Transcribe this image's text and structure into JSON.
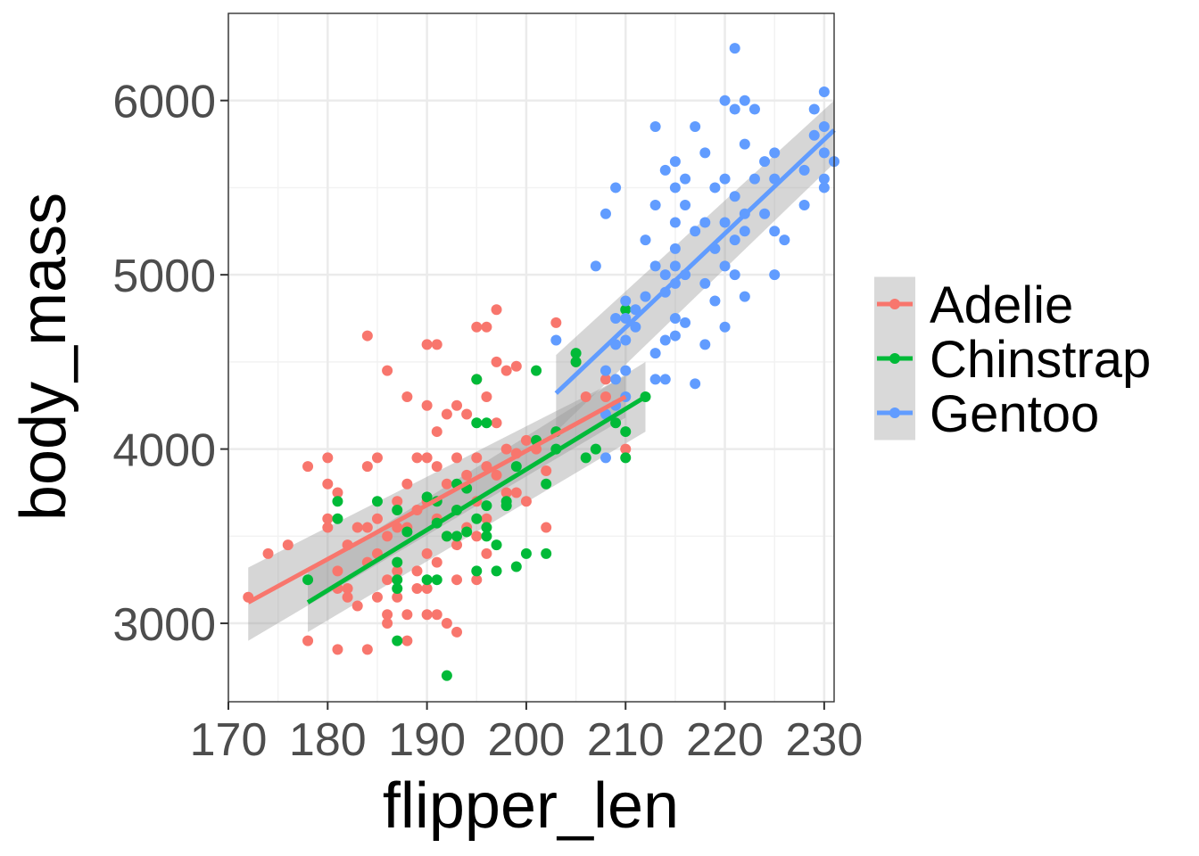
{
  "chart_data": {
    "type": "scatter",
    "title": "",
    "xlabel": "flipper_len",
    "ylabel": "body_mass",
    "xlim": [
      170,
      231
    ],
    "ylim": [
      2550,
      6500
    ],
    "x_ticks": [
      170,
      180,
      190,
      200,
      210,
      220,
      230
    ],
    "x_tick_labels": [
      "170",
      "180",
      "190",
      "200",
      "210",
      "220",
      "230"
    ],
    "y_ticks": [
      3000,
      4000,
      5000,
      6000
    ],
    "y_tick_labels": [
      "3000",
      "4000",
      "5000",
      "6000"
    ],
    "grid": true,
    "legend_position": "right",
    "series": [
      {
        "name": "Adelie",
        "color": "#F8766D",
        "fit": {
          "x": [
            172,
            210
          ],
          "y": [
            3120,
            4300
          ],
          "ci_start": [
            2900,
            3320
          ],
          "ci_end": [
            4180,
            4420
          ]
        },
        "points": [
          [
            172,
            3150
          ],
          [
            174,
            3400
          ],
          [
            176,
            3450
          ],
          [
            178,
            3900
          ],
          [
            178,
            2900
          ],
          [
            180,
            3950
          ],
          [
            180,
            3800
          ],
          [
            180,
            3600
          ],
          [
            180,
            3550
          ],
          [
            181,
            3300
          ],
          [
            181,
            2850
          ],
          [
            181,
            3750
          ],
          [
            181,
            3200
          ],
          [
            182,
            3150
          ],
          [
            182,
            3450
          ],
          [
            182,
            3200
          ],
          [
            183,
            3550
          ],
          [
            183,
            3100
          ],
          [
            184,
            4650
          ],
          [
            184,
            3900
          ],
          [
            184,
            3350
          ],
          [
            184,
            2850
          ],
          [
            184,
            3550
          ],
          [
            185,
            3950
          ],
          [
            185,
            3600
          ],
          [
            185,
            3400
          ],
          [
            185,
            3150
          ],
          [
            186,
            4450
          ],
          [
            186,
            3500
          ],
          [
            186,
            3050
          ],
          [
            186,
            3250
          ],
          [
            186,
            3000
          ],
          [
            187,
            3700
          ],
          [
            187,
            3550
          ],
          [
            187,
            3300
          ],
          [
            187,
            3150
          ],
          [
            188,
            4300
          ],
          [
            188,
            3800
          ],
          [
            188,
            3550
          ],
          [
            188,
            3050
          ],
          [
            188,
            2900
          ],
          [
            189,
            3950
          ],
          [
            189,
            3650
          ],
          [
            189,
            3300
          ],
          [
            189,
            3200
          ],
          [
            190,
            4600
          ],
          [
            190,
            4250
          ],
          [
            190,
            3950
          ],
          [
            190,
            3700
          ],
          [
            190,
            3400
          ],
          [
            190,
            3050
          ],
          [
            190,
            3200
          ],
          [
            191,
            4600
          ],
          [
            191,
            4100
          ],
          [
            191,
            3900
          ],
          [
            191,
            3600
          ],
          [
            191,
            3350
          ],
          [
            191,
            3050
          ],
          [
            192,
            4200
          ],
          [
            192,
            3800
          ],
          [
            192,
            3500
          ],
          [
            192,
            3000
          ],
          [
            193,
            4250
          ],
          [
            193,
            3950
          ],
          [
            193,
            3650
          ],
          [
            193,
            3450
          ],
          [
            193,
            3250
          ],
          [
            193,
            2950
          ],
          [
            194,
            4200
          ],
          [
            194,
            3850
          ],
          [
            194,
            3550
          ],
          [
            195,
            4700
          ],
          [
            195,
            4400
          ],
          [
            195,
            3950
          ],
          [
            195,
            3700
          ],
          [
            195,
            3500
          ],
          [
            195,
            3250
          ],
          [
            196,
            4700
          ],
          [
            196,
            4300
          ],
          [
            196,
            3900
          ],
          [
            196,
            3600
          ],
          [
            196,
            3400
          ],
          [
            197,
            4800
          ],
          [
            197,
            4500
          ],
          [
            197,
            4150
          ],
          [
            197,
            3850
          ],
          [
            198,
            4450
          ],
          [
            198,
            4000
          ],
          [
            198,
            3750
          ],
          [
            199,
            4475
          ],
          [
            199,
            3975
          ],
          [
            199,
            3750
          ],
          [
            200,
            4050
          ],
          [
            200,
            3700
          ],
          [
            201,
            4000
          ],
          [
            202,
            3550
          ],
          [
            202,
            3875
          ],
          [
            203,
            4725
          ],
          [
            205,
            4500
          ],
          [
            206,
            4300
          ],
          [
            208,
            4300
          ],
          [
            210,
            4000
          ],
          [
            208,
            4400
          ]
        ]
      },
      {
        "name": "Chinstrap",
        "color": "#00BA38",
        "fit": {
          "x": [
            178,
            212
          ],
          "y": [
            3120,
            4300
          ],
          "ci_start": [
            2950,
            3290
          ],
          "ci_end": [
            4100,
            4500
          ]
        },
        "points": [
          [
            178,
            3250
          ],
          [
            181,
            3700
          ],
          [
            181,
            3600
          ],
          [
            185,
            3700
          ],
          [
            187,
            3650
          ],
          [
            187,
            3350
          ],
          [
            187,
            3250
          ],
          [
            187,
            3200
          ],
          [
            187,
            2900
          ],
          [
            188,
            3525
          ],
          [
            190,
            3725
          ],
          [
            190,
            3250
          ],
          [
            191,
            3700
          ],
          [
            191,
            3575
          ],
          [
            191,
            3250
          ],
          [
            192,
            3500
          ],
          [
            192,
            2700
          ],
          [
            193,
            3800
          ],
          [
            193,
            3650
          ],
          [
            193,
            3500
          ],
          [
            194,
            3775
          ],
          [
            194,
            3525
          ],
          [
            195,
            4400
          ],
          [
            195,
            4150
          ],
          [
            195,
            3600
          ],
          [
            195,
            3300
          ],
          [
            196,
            4150
          ],
          [
            196,
            3675
          ],
          [
            196,
            3550
          ],
          [
            196,
            3500
          ],
          [
            197,
            3450
          ],
          [
            197,
            3300
          ],
          [
            198,
            3700
          ],
          [
            198,
            3675
          ],
          [
            199,
            3900
          ],
          [
            199,
            3325
          ],
          [
            200,
            3400
          ],
          [
            201,
            4450
          ],
          [
            201,
            4050
          ],
          [
            202,
            3800
          ],
          [
            202,
            3400
          ],
          [
            203,
            4100
          ],
          [
            203,
            4000
          ],
          [
            205,
            4550
          ],
          [
            205,
            4500
          ],
          [
            206,
            3950
          ],
          [
            207,
            4000
          ],
          [
            209,
            4150
          ],
          [
            210,
            4800
          ],
          [
            210,
            4100
          ],
          [
            210,
            3950
          ],
          [
            212,
            4300
          ]
        ]
      },
      {
        "name": "Gentoo",
        "color": "#619CFF",
        "fit": {
          "x": [
            203,
            231
          ],
          "y": [
            4320,
            5830
          ],
          "ci_start": [
            4100,
            4540
          ],
          "ci_end": [
            5640,
            6000
          ]
        },
        "points": [
          [
            203,
            4625
          ],
          [
            207,
            5050
          ],
          [
            208,
            5350
          ],
          [
            208,
            4450
          ],
          [
            208,
            4200
          ],
          [
            208,
            3950
          ],
          [
            209,
            5500
          ],
          [
            209,
            4750
          ],
          [
            209,
            4600
          ],
          [
            209,
            4400
          ],
          [
            209,
            4250
          ],
          [
            210,
            4850
          ],
          [
            210,
            4750
          ],
          [
            210,
            4625
          ],
          [
            210,
            4450
          ],
          [
            210,
            4300
          ],
          [
            211,
            4800
          ],
          [
            211,
            4700
          ],
          [
            212,
            5200
          ],
          [
            212,
            4875
          ],
          [
            213,
            5850
          ],
          [
            213,
            5400
          ],
          [
            213,
            5050
          ],
          [
            213,
            4550
          ],
          [
            213,
            4400
          ],
          [
            214,
            5600
          ],
          [
            214,
            5000
          ],
          [
            214,
            4900
          ],
          [
            214,
            4625
          ],
          [
            214,
            4400
          ],
          [
            215,
            5650
          ],
          [
            215,
            5500
          ],
          [
            215,
            5300
          ],
          [
            215,
            5150
          ],
          [
            215,
            5050
          ],
          [
            215,
            4950
          ],
          [
            215,
            4750
          ],
          [
            215,
            4650
          ],
          [
            216,
            5400
          ],
          [
            216,
            5000
          ],
          [
            216,
            4725
          ],
          [
            216,
            5550
          ],
          [
            217,
            5850
          ],
          [
            217,
            5250
          ],
          [
            217,
            4375
          ],
          [
            218,
            5700
          ],
          [
            218,
            5300
          ],
          [
            218,
            4950
          ],
          [
            218,
            4600
          ],
          [
            219,
            5500
          ],
          [
            219,
            5150
          ],
          [
            219,
            4850
          ],
          [
            220,
            6000
          ],
          [
            220,
            5550
          ],
          [
            220,
            5300
          ],
          [
            220,
            5050
          ],
          [
            220,
            4700
          ],
          [
            221,
            6300
          ],
          [
            221,
            5950
          ],
          [
            221,
            5450
          ],
          [
            221,
            5200
          ],
          [
            221,
            5000
          ],
          [
            222,
            6000
          ],
          [
            222,
            5750
          ],
          [
            222,
            5350
          ],
          [
            222,
            5250
          ],
          [
            222,
            4875
          ],
          [
            223,
            5950
          ],
          [
            223,
            5550
          ],
          [
            224,
            5650
          ],
          [
            224,
            5350
          ],
          [
            225,
            5700
          ],
          [
            225,
            5550
          ],
          [
            225,
            5250
          ],
          [
            225,
            5000
          ],
          [
            226,
            5200
          ],
          [
            228,
            5600
          ],
          [
            228,
            5400
          ],
          [
            229,
            5950
          ],
          [
            229,
            5800
          ],
          [
            230,
            6050
          ],
          [
            230,
            5850
          ],
          [
            230,
            5700
          ],
          [
            230,
            5550
          ],
          [
            230,
            5500
          ],
          [
            231,
            5650
          ]
        ]
      }
    ]
  }
}
